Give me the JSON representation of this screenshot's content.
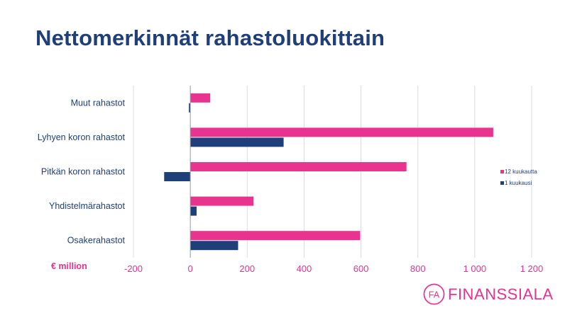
{
  "title": "Nettomerkinnät rahastoluokittain",
  "chart_data": {
    "type": "bar",
    "orientation": "horizontal",
    "categories": [
      "Muut rahastot",
      "Lyhyen koron rahastot",
      "Pitkän koron rahastot",
      "Yhdistelmärahastot",
      "Osakerahastot"
    ],
    "series": [
      {
        "name": "12 kuukautta",
        "color": "#e8338f",
        "values": [
          70,
          1065,
          760,
          222,
          597
        ]
      },
      {
        "name": "1 kuukausi",
        "color": "#1f3f7a",
        "values": [
          -5,
          328,
          -92,
          22,
          168
        ]
      }
    ],
    "xlim": [
      -200,
      1200
    ],
    "xticks": [
      -200,
      0,
      200,
      400,
      600,
      800,
      1000,
      1200
    ],
    "xtick_labels": [
      "-200",
      "0",
      "200",
      "400",
      "600",
      "800",
      "1 000",
      "1 200"
    ],
    "unit_label": "€ million",
    "grid": "vertical",
    "legend_position": "right"
  },
  "logo": {
    "mark": "FA",
    "text": "FINANSSIALA"
  }
}
